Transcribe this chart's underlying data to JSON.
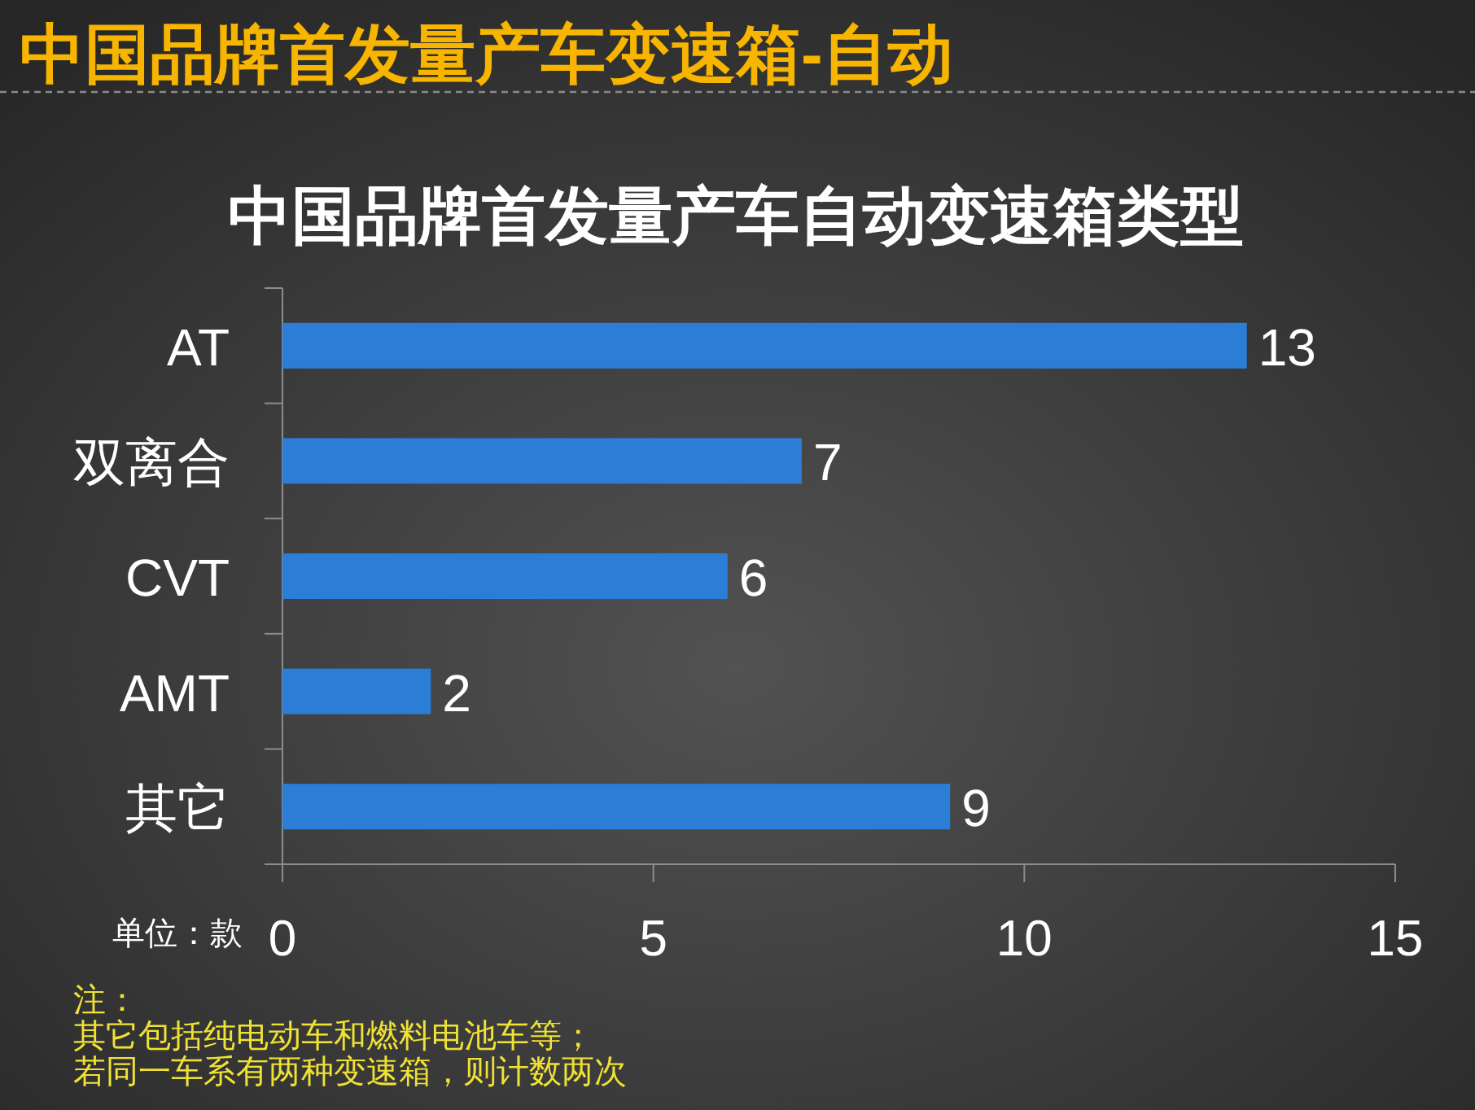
{
  "chart_data": {
    "type": "bar",
    "orientation": "horizontal",
    "title": "中国品牌首发量产车变速箱-自动",
    "subtitle": "中国品牌首发量产车自动变速箱类型",
    "categories": [
      "AT",
      "双离合",
      "CVT",
      "AMT",
      "其它"
    ],
    "values": [
      13,
      7,
      6,
      2,
      9
    ],
    "color": "#2b7dd6",
    "xlim": [
      0,
      15
    ],
    "xticks": [
      0,
      5,
      10,
      15
    ],
    "xlabel": "单位：款",
    "data_labels": true,
    "annotations": [
      "注：",
      "其它包括纯电动车和燃料电池车等；",
      "若同一车系有两种变速箱，则计数两次"
    ]
  }
}
